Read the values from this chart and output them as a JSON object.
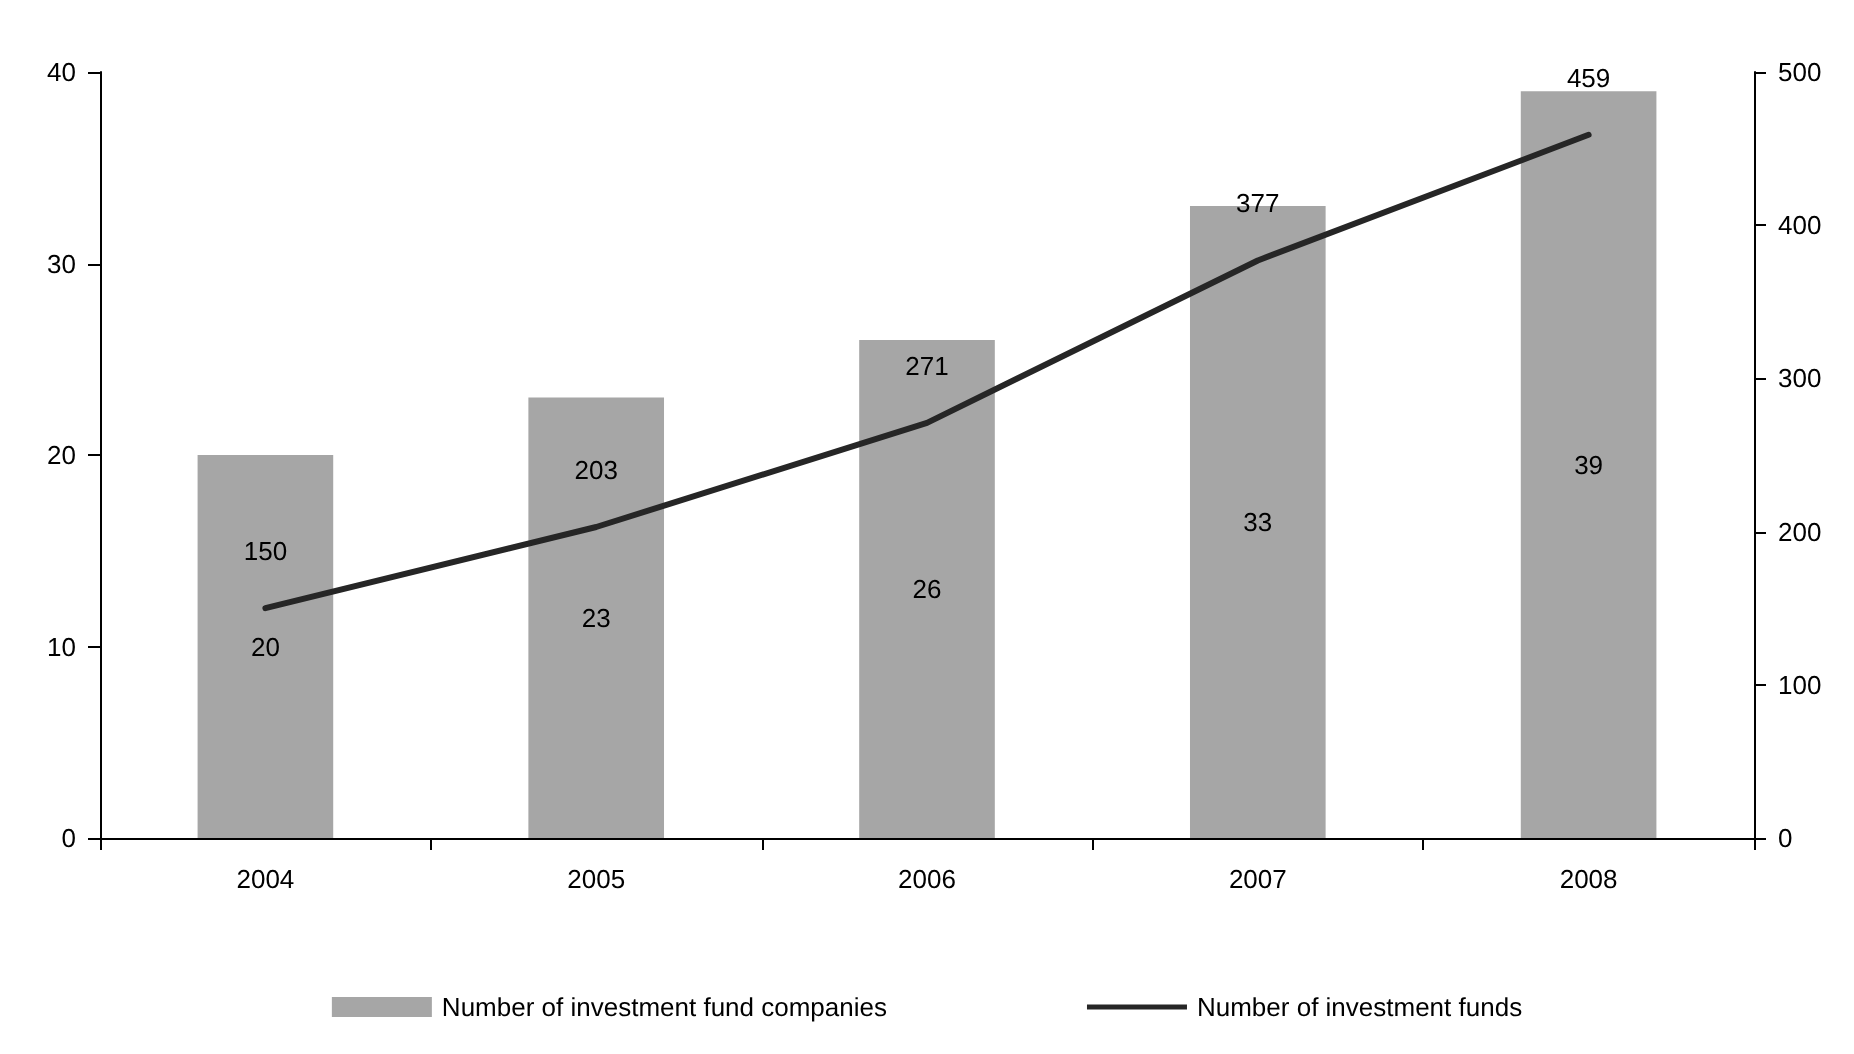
{
  "chart_data": {
    "type": "bar",
    "categories": [
      "2004",
      "2005",
      "2006",
      "2007",
      "2008"
    ],
    "series": [
      {
        "name": "Number of investment fund companies",
        "color": "#a6a6a6",
        "values": [
          20,
          23,
          26,
          33,
          39
        ]
      },
      {
        "name": "Number of investment funds",
        "type": "line",
        "axis": "y2",
        "color": "#262626",
        "values": [
          150,
          203,
          271,
          377,
          459
        ]
      }
    ],
    "ylim": [
      0,
      40
    ],
    "yticks": [
      0,
      10,
      20,
      30,
      40
    ],
    "y2lim": [
      0,
      500
    ],
    "y2ticks": [
      0,
      100,
      200,
      300,
      400,
      500
    ],
    "data_labels": true,
    "grid": false,
    "legend": "bottom",
    "marker": "none",
    "line_style": "solid"
  }
}
